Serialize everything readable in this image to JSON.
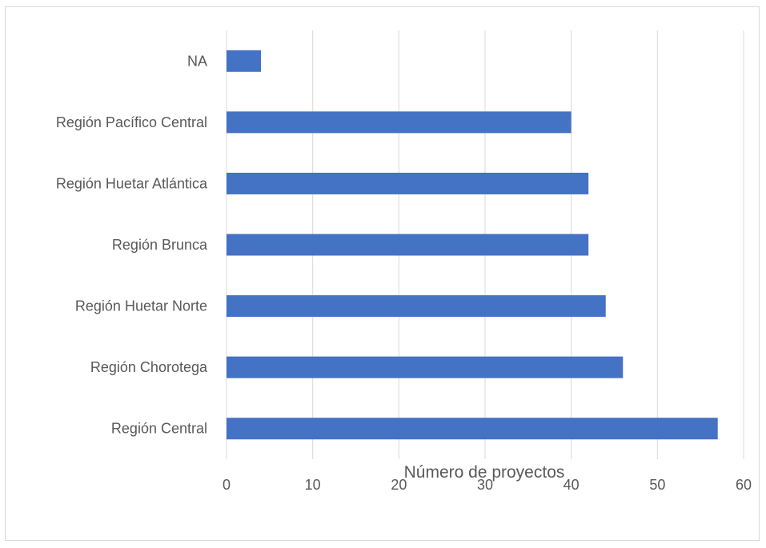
{
  "chart_data": {
    "type": "bar",
    "orientation": "horizontal",
    "categories": [
      "NA",
      "Región Pacífico Central",
      "Región Huetar Atlántica",
      "Región Brunca",
      "Región Huetar Norte",
      "Región Chorotega",
      "Región Central"
    ],
    "values": [
      4,
      40,
      42,
      42,
      44,
      46,
      57
    ],
    "xlabel": "Número de proyectos",
    "ylabel": "",
    "xlim": [
      0,
      60
    ],
    "xticks": [
      "0",
      "10",
      "20",
      "30",
      "40",
      "50",
      "60"
    ],
    "grid": "vertical",
    "legend": "none",
    "bar_color": "#4472c4",
    "grid_color": "#d9d9d9"
  }
}
